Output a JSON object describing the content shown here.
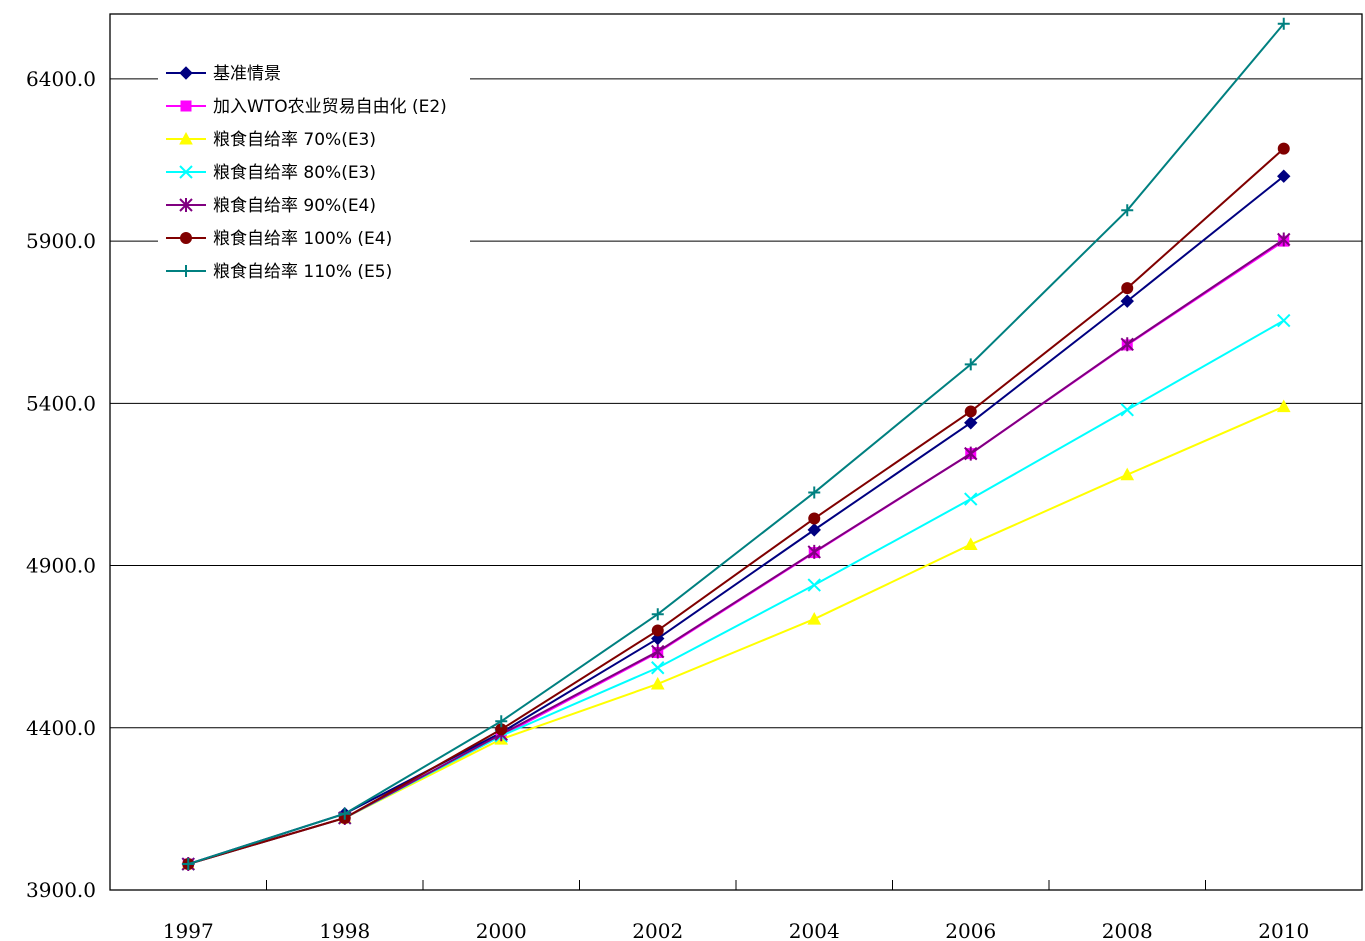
{
  "chart_data": {
    "type": "line",
    "categories": [
      "1997",
      "1998",
      "2000",
      "2002",
      "2004",
      "2006",
      "2008",
      "2010"
    ],
    "ylim": [
      3900,
      6600
    ],
    "yticks": [
      3900,
      4400,
      4900,
      5400,
      5900,
      6400
    ],
    "ytick_labels": [
      "3900.0",
      "4400.0",
      "4900.0",
      "5400.0",
      "5900.0",
      "6400.0"
    ],
    "grid": "horizontal",
    "legend_position": "top-left",
    "series": [
      {
        "name": "基准情景",
        "color": "#000080",
        "marker": "diamond",
        "values": [
          3980,
          4135,
          4385,
          4675,
          5010,
          5340,
          5715,
          6100
        ]
      },
      {
        "name": "加入WTO农业贸易自由化 (E2)",
        "color": "#ff00ff",
        "marker": "square",
        "values": [
          3980,
          4122,
          4375,
          4632,
          4940,
          5245,
          5580,
          5900
        ]
      },
      {
        "name": "粮食自给率 70%(E3)",
        "color": "#ffff00",
        "marker": "triangle",
        "values": [
          3980,
          4122,
          4365,
          4535,
          4735,
          4965,
          5180,
          5390
        ]
      },
      {
        "name": "粮食自给率 80%(E3)",
        "color": "#00ffff",
        "marker": "x",
        "values": [
          3980,
          4122,
          4375,
          4585,
          4840,
          5105,
          5380,
          5655
        ]
      },
      {
        "name": "粮食自给率 90%(E4)",
        "color": "#800080",
        "marker": "star",
        "values": [
          3980,
          4122,
          4380,
          4635,
          4942,
          5245,
          5582,
          5905
        ]
      },
      {
        "name": "粮食自给率 100% (E4)",
        "color": "#800000",
        "marker": "circle",
        "values": [
          3980,
          4122,
          4395,
          4700,
          5045,
          5375,
          5755,
          6185
        ]
      },
      {
        "name": "粮食自给率 110% (E5)",
        "color": "#008080",
        "marker": "plus",
        "values": [
          3980,
          4135,
          4420,
          4750,
          5125,
          5520,
          5995,
          6570
        ]
      }
    ]
  }
}
